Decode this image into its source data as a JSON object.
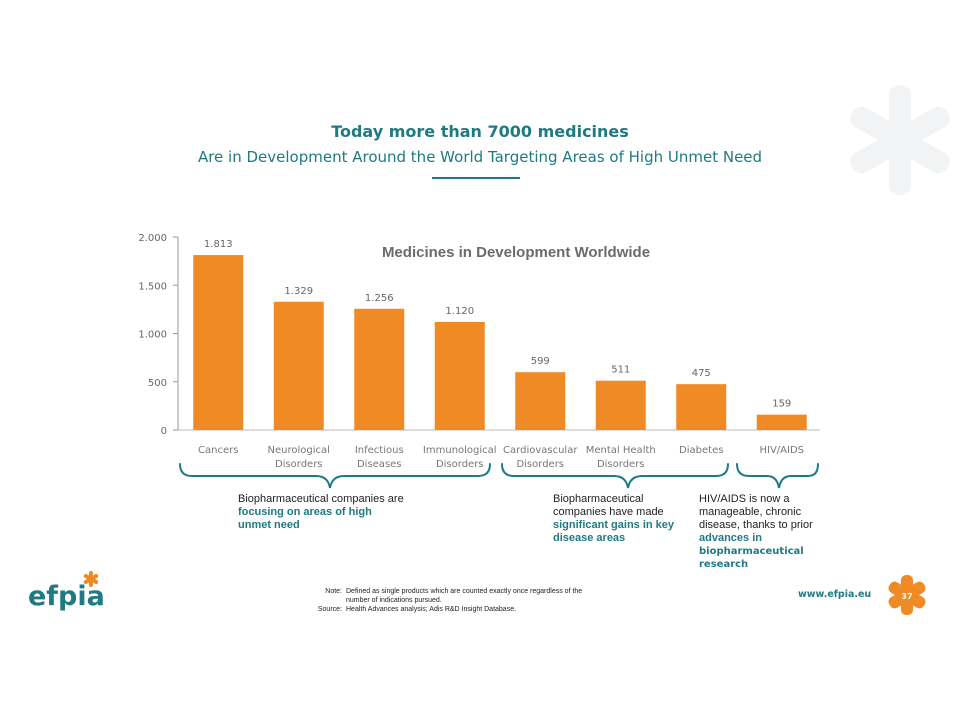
{
  "slide": {
    "title_line1": "Today more than 7000 medicines",
    "title_line2": "Are in Development Around the World Targeting Areas of High Unmet Need",
    "page_number": "37",
    "website": "www.efpia.eu",
    "logo_text": "efpia",
    "colors": {
      "accent": "#1f7a82",
      "bar": "#f08a24"
    }
  },
  "chart_data": {
    "type": "bar",
    "title": "Medicines in Development Worldwide",
    "categories": [
      [
        "Cancers"
      ],
      [
        "Neurological",
        "Disorders"
      ],
      [
        "Infectious",
        "Diseases"
      ],
      [
        "Immunological",
        "Disorders"
      ],
      [
        "Cardiovascular",
        "Disorders"
      ],
      [
        "Mental Health",
        "Disorders"
      ],
      [
        "Diabetes"
      ],
      [
        "HIV/AIDS"
      ]
    ],
    "values": [
      1813,
      1329,
      1256,
      1120,
      599,
      511,
      475,
      159
    ],
    "value_labels": [
      "1.813",
      "1.329",
      "1.256",
      "1.120",
      "599",
      "511",
      "475",
      "159"
    ],
    "ylim": [
      0,
      2000
    ],
    "yticks": [
      0,
      500,
      1000,
      1500,
      2000
    ],
    "ytick_labels": [
      "0",
      "500",
      "1.000",
      "1.500",
      "2.000"
    ],
    "grid": false,
    "legend": "none"
  },
  "annotations": {
    "left_plain": "Biopharmaceutical companies are",
    "left_bold_1": "focusing on areas of high",
    "left_bold_2": "unmet need",
    "mid_plain_1": "Biopharmaceutical",
    "mid_plain_2": "companies have made",
    "mid_bold_1": "significant gains in key",
    "mid_bold_2": "disease areas",
    "right_plain_1": "HIV/AIDS is now a",
    "right_plain_2": "manageable, chronic",
    "right_plain_3": "disease, thanks to prior",
    "right_bold_1": "advances in",
    "right_bold_2": "biopharmaceutical",
    "right_bold_3": "research"
  },
  "footer": {
    "note_label": "Note:",
    "note_line1": "Defined as single products which are counted exactly once regardless of the",
    "note_line2": "number of indications pursued.",
    "source_label": "Source:",
    "source_text": "Health Advances analysis; Adis R&D Insight Database."
  }
}
